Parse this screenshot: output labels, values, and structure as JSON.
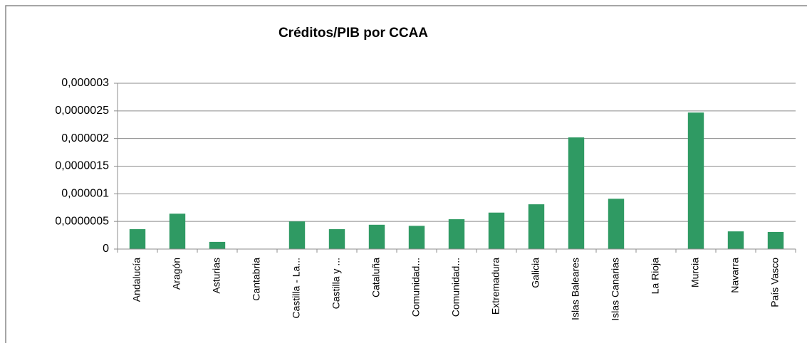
{
  "chart_data": {
    "type": "bar",
    "title": "Créditos/PIB por CCAA",
    "categories": [
      "Andalucía",
      "Aragón",
      "Asturias",
      "Cantabria",
      "Castilla - La...",
      "Castilla y ...",
      "Cataluña",
      "Comunidad...",
      "Comunidad...",
      "Extremadura",
      "Galicia",
      "Islas Baleares",
      "Islas Canarias",
      "La Rioja",
      "Murcia",
      "Navarra",
      "País Vasco"
    ],
    "values": [
      3.6e-07,
      6.4e-07,
      1.3e-07,
      0,
      5e-07,
      3.6e-07,
      4.4e-07,
      4.2e-07,
      5.4e-07,
      6.6e-07,
      8.1e-07,
      2.02e-06,
      9.1e-07,
      0,
      2.47e-06,
      3.2e-07,
      3.1e-07
    ],
    "color": "#2f9a63",
    "ylim": [
      0,
      3e-06
    ],
    "yticks": [
      0,
      {
        "value": 5e-07,
        "label": "0,0000005"
      },
      {
        "value": 1e-06,
        "label": "0,000001"
      },
      {
        "value": 1.5e-06,
        "label": "0,0000015"
      },
      {
        "value": 2e-06,
        "label": "0,000002"
      },
      {
        "value": 2.5e-06,
        "label": "0,0000025"
      },
      {
        "value": 3e-06,
        "label": "0,000003"
      }
    ],
    "grid": true
  }
}
